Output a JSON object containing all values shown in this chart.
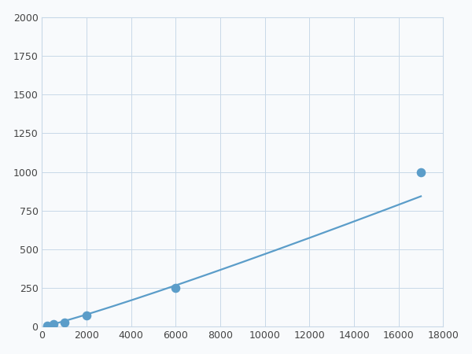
{
  "x": [
    250,
    500,
    1000,
    2000,
    6000,
    17000
  ],
  "y": [
    10,
    18,
    28,
    75,
    250,
    1000
  ],
  "line_color": "#5b9dc9",
  "marker_color": "#5b9dc9",
  "marker_size": 6,
  "line_width": 1.6,
  "xlim": [
    0,
    18000
  ],
  "ylim": [
    0,
    2000
  ],
  "xticks": [
    0,
    2000,
    4000,
    6000,
    8000,
    10000,
    12000,
    14000,
    16000,
    18000
  ],
  "yticks": [
    0,
    250,
    500,
    750,
    1000,
    1250,
    1500,
    1750,
    2000
  ],
  "grid_color": "#c8d8e8",
  "background_color": "#f8fafc",
  "spine_color": "#c8d8e8"
}
